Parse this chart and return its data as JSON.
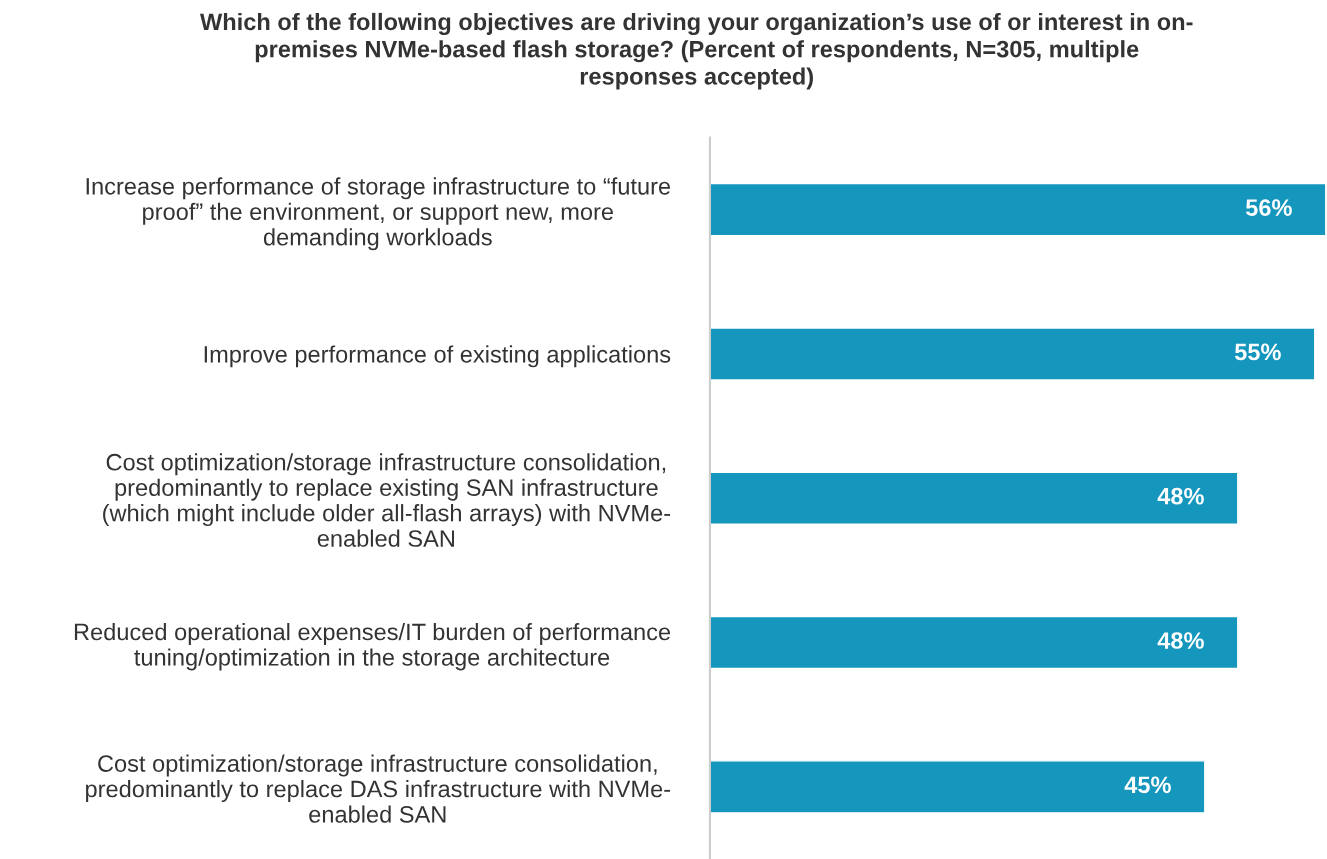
{
  "chart_data": {
    "type": "bar",
    "orientation": "horizontal",
    "title": "Which of the following objectives are driving your organization’s use of or interest in on-\npremises NVMe-based flash storage? (Percent of respondents, N=305, multiple\nresponses accepted)",
    "categories": [
      "Increase performance of storage infrastructure to “future\nproof” the environment, or support new, more\ndemanding workloads",
      "Improve performance of existing applications",
      "Cost optimization/storage infrastructure consolidation,\npredominantly to replace existing SAN infrastructure\n(which might include older all-flash arrays) with NVMe-\nenabled SAN",
      "Reduced operational expenses/IT burden of performance\ntuning/optimization in the storage architecture",
      "Cost optimization/storage infrastructure consolidation,\npredominantly to replace DAS infrastructure with NVMe-\nenabled SAN"
    ],
    "values": [
      56,
      55,
      48,
      48,
      45
    ],
    "value_labels": [
      "56%",
      "55%",
      "48%",
      "48%",
      "45%"
    ],
    "color": "#1496bd",
    "grid": false,
    "legend": false
  }
}
